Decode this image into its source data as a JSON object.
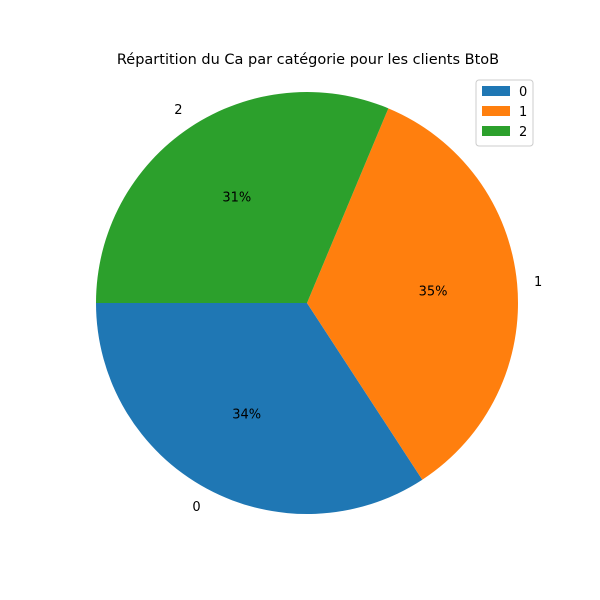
{
  "chart_data": {
    "type": "pie",
    "title": "Répartition du Ca par catégorie pour les clients BtoB",
    "categories": [
      "0",
      "1",
      "2"
    ],
    "values": [
      34.2,
      34.5,
      31.3
    ],
    "pct_labels": [
      "34%",
      "35%",
      "31%"
    ],
    "colors": [
      "#1f77b4",
      "#ff7f0e",
      "#2ca02c"
    ],
    "start_angle_deg": 180,
    "direction": "counterclockwise",
    "legend": {
      "placement": "top-right",
      "entries": [
        "0",
        "1",
        "2"
      ]
    }
  }
}
